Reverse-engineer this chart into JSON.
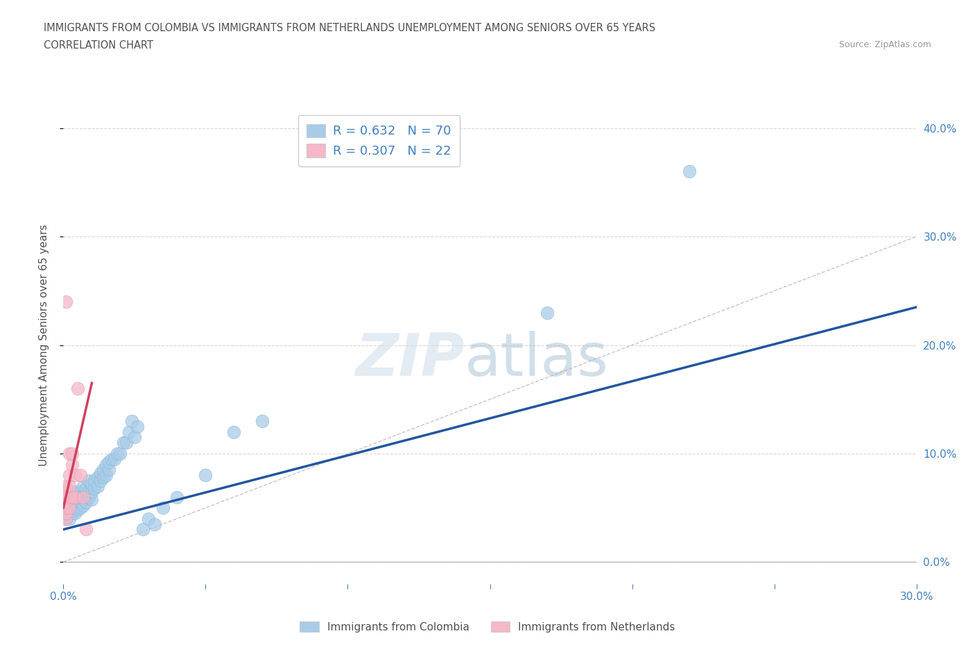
{
  "title_line1": "IMMIGRANTS FROM COLOMBIA VS IMMIGRANTS FROM NETHERLANDS UNEMPLOYMENT AMONG SENIORS OVER 65 YEARS",
  "title_line2": "CORRELATION CHART",
  "source_text": "Source: ZipAtlas.com",
  "ylabel": "Unemployment Among Seniors over 65 years",
  "colombia_color": "#a8cce8",
  "netherlands_color": "#f4b8c8",
  "colombia_edge_color": "#88b8d8",
  "netherlands_edge_color": "#e898b0",
  "colombia_line_color": "#2255a0",
  "netherlands_line_color": "#d04060",
  "reference_line_color": "#d0c0c8",
  "xlim": [
    0.0,
    0.3
  ],
  "ylim": [
    -0.02,
    0.42
  ],
  "plot_ylim": [
    0.0,
    0.42
  ],
  "xtick_positions": [
    0.0,
    0.05,
    0.1,
    0.15,
    0.2,
    0.25,
    0.3
  ],
  "ytick_positions": [
    0.0,
    0.1,
    0.2,
    0.3,
    0.4
  ],
  "colombia_legend": "R = 0.632   N = 70",
  "netherlands_legend": "R = 0.307   N = 22",
  "colombia_bottom_legend": "Immigrants from Colombia",
  "netherlands_bottom_legend": "Immigrants from Netherlands",
  "background_color": "#ffffff",
  "grid_color": "#d8d8d8",
  "title_color": "#505050",
  "tick_color": "#4080c0",
  "legend_text_color": "#4080c0",
  "colombia_scatter_x": [
    0.001,
    0.001,
    0.001,
    0.001,
    0.002,
    0.002,
    0.002,
    0.002,
    0.002,
    0.003,
    0.003,
    0.003,
    0.003,
    0.003,
    0.004,
    0.004,
    0.004,
    0.004,
    0.005,
    0.005,
    0.005,
    0.005,
    0.006,
    0.006,
    0.006,
    0.007,
    0.007,
    0.007,
    0.007,
    0.008,
    0.008,
    0.008,
    0.009,
    0.009,
    0.009,
    0.01,
    0.01,
    0.01,
    0.011,
    0.011,
    0.012,
    0.012,
    0.013,
    0.013,
    0.014,
    0.014,
    0.015,
    0.015,
    0.016,
    0.016,
    0.017,
    0.018,
    0.019,
    0.02,
    0.021,
    0.022,
    0.023,
    0.024,
    0.025,
    0.026,
    0.028,
    0.03,
    0.032,
    0.035,
    0.04,
    0.05,
    0.06,
    0.07,
    0.17,
    0.22
  ],
  "colombia_scatter_y": [
    0.04,
    0.045,
    0.05,
    0.055,
    0.04,
    0.045,
    0.05,
    0.055,
    0.06,
    0.045,
    0.05,
    0.055,
    0.06,
    0.065,
    0.045,
    0.05,
    0.055,
    0.06,
    0.048,
    0.052,
    0.058,
    0.065,
    0.05,
    0.055,
    0.06,
    0.052,
    0.058,
    0.063,
    0.07,
    0.055,
    0.06,
    0.068,
    0.06,
    0.065,
    0.075,
    0.058,
    0.065,
    0.072,
    0.068,
    0.075,
    0.07,
    0.078,
    0.075,
    0.082,
    0.078,
    0.085,
    0.08,
    0.09,
    0.085,
    0.092,
    0.095,
    0.095,
    0.1,
    0.1,
    0.11,
    0.11,
    0.12,
    0.13,
    0.115,
    0.125,
    0.03,
    0.04,
    0.035,
    0.05,
    0.06,
    0.08,
    0.12,
    0.13,
    0.23,
    0.36
  ],
  "netherlands_scatter_x": [
    0.001,
    0.001,
    0.001,
    0.001,
    0.001,
    0.001,
    0.001,
    0.001,
    0.002,
    0.002,
    0.002,
    0.002,
    0.002,
    0.003,
    0.003,
    0.003,
    0.004,
    0.004,
    0.005,
    0.006,
    0.007,
    0.008
  ],
  "netherlands_scatter_y": [
    0.04,
    0.045,
    0.05,
    0.055,
    0.06,
    0.065,
    0.07,
    0.24,
    0.05,
    0.06,
    0.07,
    0.08,
    0.1,
    0.06,
    0.09,
    0.1,
    0.06,
    0.08,
    0.16,
    0.08,
    0.06,
    0.03
  ],
  "colombia_line_x": [
    0.0,
    0.3
  ],
  "colombia_line_y": [
    0.03,
    0.235
  ],
  "netherlands_line_x": [
    0.0,
    0.01
  ],
  "netherlands_line_y": [
    0.05,
    0.165
  ],
  "ref_line_x": [
    0.0,
    0.3
  ],
  "ref_line_y": [
    0.0,
    0.3
  ]
}
